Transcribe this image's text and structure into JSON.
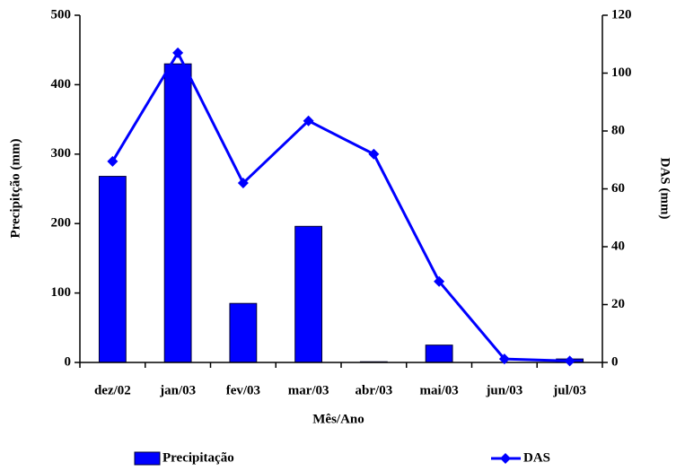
{
  "chart_data": {
    "type": "bar",
    "x_label": "Mês/Ano",
    "y_label": "Precipitção (mm)",
    "y2_label": "DAS (mm)",
    "categories": [
      "dez/02",
      "jan/03",
      "fev/03",
      "mar/03",
      "abr/03",
      "mai/03",
      "jun/03",
      "jul/03"
    ],
    "series": [
      {
        "name": "Precipitação",
        "color": "#0000ff",
        "type": "bar",
        "values": [
          268,
          430,
          85,
          196,
          1,
          25,
          0,
          5
        ]
      },
      {
        "name": "DAS",
        "color": "#0000ff",
        "type": "line",
        "axis": "y2",
        "values": [
          69.5,
          107,
          62,
          83.5,
          72,
          28,
          1.2,
          0.5
        ]
      }
    ],
    "ylim": [
      0,
      500
    ],
    "yticks": [
      0,
      100,
      200,
      300,
      400,
      500
    ],
    "y2lim": [
      0,
      120
    ],
    "y2ticks": [
      0,
      20,
      40,
      60,
      80,
      100,
      120
    ],
    "legend": "bottom"
  }
}
